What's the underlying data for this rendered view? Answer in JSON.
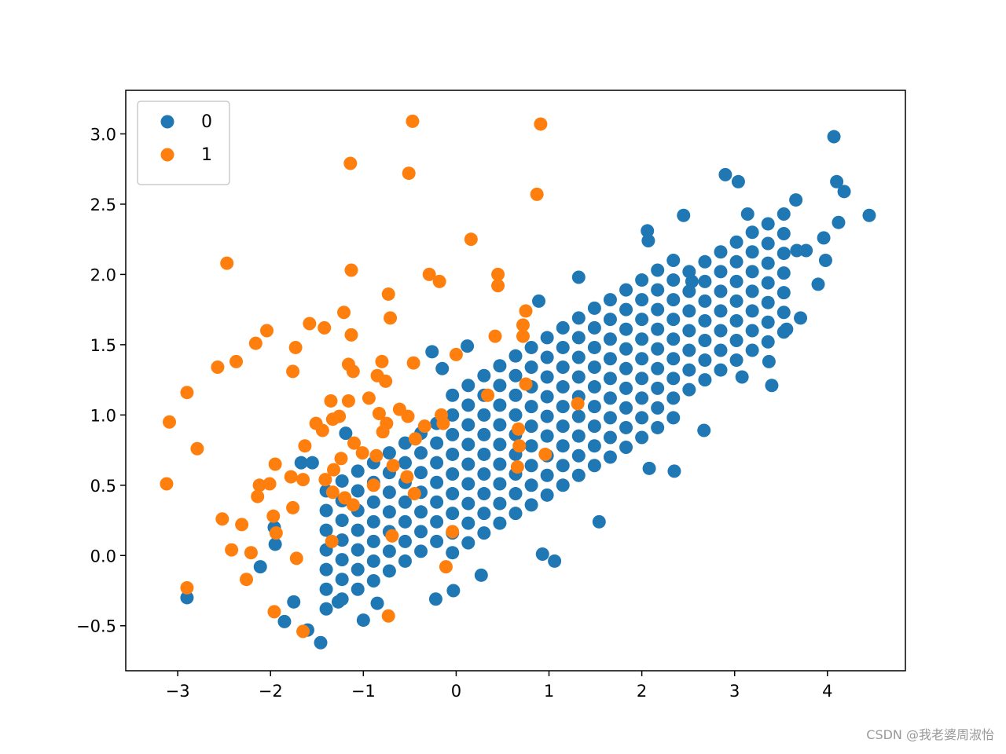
{
  "chart_data": {
    "type": "scatter",
    "xlim": [
      -3.56,
      4.84
    ],
    "ylim": [
      -0.82,
      3.31
    ],
    "xticks": [
      {
        "value": -3,
        "label": "−3"
      },
      {
        "value": -2,
        "label": "−2"
      },
      {
        "value": -1,
        "label": "−1"
      },
      0,
      1,
      2,
      3,
      4
    ],
    "yticks": [
      {
        "value": -0.5,
        "label": "−0.5"
      },
      {
        "value": 0,
        "label": "0.0"
      },
      0.5,
      {
        "value": 1,
        "label": "1.0"
      },
      1.5,
      {
        "value": 2,
        "label": "2.0"
      },
      2.5,
      {
        "value": 3,
        "label": "3.0"
      }
    ],
    "legend": "upper left",
    "series": [
      {
        "name": "0",
        "color": "#1f77b4",
        "x": [
          -1.4,
          -1.23,
          -1.06,
          -0.89,
          -0.72,
          -0.55,
          -0.38,
          -0.21,
          -0.04,
          0.13,
          0.3,
          0.47,
          0.64,
          0.81,
          0.98,
          1.15,
          1.32,
          1.49,
          1.66,
          1.83,
          2,
          2.17,
          2.34,
          2.51,
          2.68,
          2.85,
          3.02,
          3.19,
          3.36,
          3.53,
          -1.4,
          -1.23,
          -1.06,
          -0.89,
          -0.72,
          -0.55,
          -0.38,
          -0.21,
          -0.04,
          0.13,
          0.3,
          0.47,
          0.64,
          0.81,
          0.98,
          1.15,
          1.32,
          1.49,
          1.66,
          1.83,
          2,
          2.17,
          2.34,
          2.51,
          2.68,
          2.85,
          3.02,
          3.19,
          3.36,
          3.53,
          -1.4,
          -1.23,
          -1.06,
          -0.89,
          -0.72,
          -0.55,
          -0.38,
          -0.21,
          -0.04,
          0.13,
          0.3,
          0.47,
          0.64,
          0.81,
          0.98,
          1.15,
          1.32,
          1.49,
          1.66,
          1.83,
          2,
          2.17,
          2.34,
          2.51,
          2.68,
          2.85,
          3.02,
          3.19,
          3.36,
          3.53,
          -1.4,
          -1.23,
          -1.06,
          -0.89,
          -0.72,
          -0.55,
          -0.38,
          -0.21,
          -0.04,
          0.13,
          0.3,
          0.47,
          0.64,
          0.81,
          0.98,
          1.15,
          1.32,
          1.49,
          1.66,
          1.83,
          2,
          2.17,
          2.34,
          2.51,
          2.68,
          2.85,
          3.02,
          3.19,
          3.36,
          3.53,
          -1.4,
          -1.23,
          -1.06,
          -0.89,
          -0.72,
          -0.55,
          -0.38,
          -0.21,
          -0.04,
          0.13,
          0.3,
          0.47,
          0.64,
          0.81,
          0.98,
          1.15,
          1.32,
          1.49,
          1.66,
          1.83,
          2,
          2.17,
          2.34,
          2.51,
          2.68,
          2.85,
          3.02,
          3.19,
          3.36,
          3.53,
          -1.4,
          -1.23,
          -1.06,
          -0.89,
          -0.72,
          -0.55,
          -0.38,
          -0.21,
          -0.04,
          0.13,
          0.3,
          0.47,
          0.64,
          0.81,
          0.98,
          1.15,
          1.32,
          1.49,
          1.66,
          1.83,
          2,
          2.17,
          2.34,
          2.51,
          2.68,
          2.85,
          3.02,
          3.19,
          3.36,
          3.53,
          -1.4,
          -1.23,
          -1.06,
          -0.89,
          -0.72,
          -0.55,
          -0.38,
          -0.21,
          -0.04,
          0.13,
          0.3,
          0.47,
          0.64,
          0.81,
          0.98,
          1.15,
          1.32,
          1.49,
          1.66,
          1.83,
          2,
          2.17,
          2.34,
          2.51,
          2.68,
          2.85,
          3.02,
          3.19,
          3.36,
          3.53,
          -0.04,
          0.13,
          0.3,
          0.47,
          0.64,
          0.81,
          0.98,
          1.15,
          1.32,
          1.49,
          1.66,
          1.83,
          2,
          2.17,
          2.34,
          -0.04,
          0.13,
          0.3,
          0.47,
          0.64,
          0.81,
          0.98,
          1.15,
          1.32,
          1.49,
          1.66,
          1.83,
          2,
          2.17,
          2.34,
          4.07,
          2.9,
          3.04,
          4.1,
          4.18,
          4.45,
          4.12,
          2.45,
          3.66,
          3.96,
          3.9,
          3.71,
          3.56,
          3.37,
          3.4,
          3.08,
          2.67,
          2.35,
          2.08,
          1.54,
          1.06,
          0.93,
          -0.03,
          -0.22,
          -1,
          -1.46,
          -1.6,
          -1.85,
          -2.9,
          -2.11,
          -1.95,
          -1.96,
          -1.67,
          -1.55,
          -1.19,
          -0.26,
          0.12,
          0.89,
          1.32,
          2.06,
          3.14,
          2.07,
          2.54,
          3.77,
          -0.15,
          -1.27,
          -0.85,
          0.27,
          -1.75,
          3.67,
          3.98
        ],
        "values": [
          -0.38,
          -0.31,
          -0.24,
          -0.18,
          -0.11,
          -0.04,
          0.03,
          0.1,
          0.16,
          0.23,
          0.3,
          0.37,
          0.44,
          0.5,
          0.57,
          0.64,
          0.71,
          0.78,
          0.84,
          0.91,
          0.98,
          1.05,
          1.12,
          1.18,
          1.25,
          1.32,
          1.39,
          1.46,
          1.52,
          1.59,
          -0.24,
          -0.17,
          -0.1,
          -0.04,
          0.03,
          0.1,
          0.17,
          0.24,
          0.3,
          0.37,
          0.44,
          0.51,
          0.58,
          0.64,
          0.71,
          0.78,
          0.85,
          0.92,
          0.98,
          1.05,
          1.12,
          1.19,
          1.26,
          1.32,
          1.39,
          1.46,
          1.53,
          1.6,
          1.66,
          1.73,
          -0.1,
          -0.03,
          0.04,
          0.1,
          0.17,
          0.24,
          0.31,
          0.38,
          0.44,
          0.51,
          0.58,
          0.65,
          0.72,
          0.78,
          0.85,
          0.92,
          0.99,
          1.06,
          1.12,
          1.19,
          1.26,
          1.33,
          1.4,
          1.46,
          1.53,
          1.6,
          1.67,
          1.74,
          1.8,
          1.87,
          0.04,
          0.11,
          0.18,
          0.24,
          0.31,
          0.38,
          0.45,
          0.52,
          0.58,
          0.65,
          0.72,
          0.79,
          0.86,
          0.92,
          0.99,
          1.06,
          1.13,
          1.2,
          1.26,
          1.33,
          1.4,
          1.47,
          1.54,
          1.6,
          1.67,
          1.74,
          1.81,
          1.88,
          1.94,
          2.01,
          0.18,
          0.25,
          0.32,
          0.38,
          0.45,
          0.52,
          0.59,
          0.66,
          0.72,
          0.79,
          0.86,
          0.93,
          1,
          1.06,
          1.13,
          1.2,
          1.27,
          1.34,
          1.4,
          1.47,
          1.54,
          1.61,
          1.68,
          1.74,
          1.81,
          1.88,
          1.95,
          2.02,
          2.08,
          2.15,
          0.32,
          0.39,
          0.46,
          0.52,
          0.59,
          0.66,
          0.73,
          0.8,
          0.86,
          0.93,
          1,
          1.07,
          1.14,
          1.2,
          1.27,
          1.34,
          1.41,
          1.48,
          1.54,
          1.61,
          1.68,
          1.75,
          1.82,
          1.88,
          1.95,
          2.02,
          2.09,
          2.16,
          2.22,
          2.29,
          0.46,
          0.53,
          0.6,
          0.66,
          0.73,
          0.8,
          0.87,
          0.94,
          1,
          1.07,
          1.14,
          1.21,
          1.28,
          1.34,
          1.41,
          1.48,
          1.55,
          1.62,
          1.68,
          1.75,
          1.82,
          1.89,
          1.96,
          2.02,
          2.09,
          2.16,
          2.23,
          2.3,
          2.36,
          2.43,
          0.02,
          0.09,
          0.16,
          0.23,
          0.3,
          0.36,
          0.43,
          0.5,
          0.57,
          0.64,
          0.7,
          0.77,
          0.84,
          0.91,
          0.98,
          1.14,
          1.21,
          1.28,
          1.35,
          1.42,
          1.48,
          1.55,
          1.62,
          1.69,
          1.76,
          1.82,
          1.89,
          1.96,
          2.03,
          2.1,
          2.98,
          2.71,
          2.66,
          2.66,
          2.59,
          2.42,
          2.37,
          2.42,
          2.53,
          2.26,
          1.93,
          1.69,
          1.61,
          1.38,
          1.21,
          1.27,
          0.89,
          0.6,
          0.62,
          0.24,
          -0.04,
          0.01,
          -0.25,
          -0.31,
          -0.46,
          -0.62,
          -0.53,
          -0.47,
          -0.3,
          -0.08,
          0.08,
          0.2,
          0.66,
          0.66,
          0.87,
          1.45,
          1.49,
          1.81,
          1.98,
          2.31,
          2.43,
          2.24,
          1.95,
          2.17,
          1.33,
          -0.33,
          -0.34,
          -0.14,
          -0.33,
          2.17,
          2.1
        ]
      },
      {
        "name": "1",
        "color": "#ff7f0e",
        "x": [
          -0.47,
          0.91,
          -1.14,
          -0.51,
          0.87,
          0.16,
          -2.47,
          -1.13,
          -0.29,
          -0.18,
          0.45,
          0.45,
          -0.73,
          -0.71,
          0.75,
          -1.21,
          -1.58,
          -1.42,
          -2.04,
          -2.16,
          -1.73,
          -1.13,
          0.72,
          0.72,
          0.42,
          -2.37,
          -2.57,
          -0.46,
          -0.8,
          -1.16,
          -1.11,
          -1.76,
          -0.85,
          -0.76,
          0,
          0.75,
          0.34,
          -2.9,
          -0.94,
          -1.35,
          -1.16,
          1.31,
          -0.61,
          -0.83,
          -1.26,
          -0.16,
          -1.33,
          -0.52,
          -0.14,
          -0.75,
          -3.09,
          -1.51,
          -1.44,
          -0.79,
          -0.34,
          0.67,
          -2.79,
          -0.44,
          -1.63,
          -1.1,
          0.68,
          -1.01,
          0.96,
          -0.86,
          -1.24,
          -1.95,
          -0.68,
          0.66,
          -1.32,
          -1.78,
          -1.41,
          -1.65,
          -0.53,
          -2.12,
          -2.01,
          -3.12,
          -0.89,
          -2.14,
          -0.45,
          -1.33,
          -1.2,
          -1.11,
          -1.76,
          -2.52,
          -1.97,
          -2.31,
          -1.94,
          -0.04,
          -0.69,
          -1.34,
          -2.42,
          -2.21,
          -1.72,
          -0.11,
          -2.26,
          -2.9,
          -1.96,
          -0.73,
          -1.65
        ],
        "values": [
          3.09,
          3.07,
          2.79,
          2.72,
          2.57,
          2.25,
          2.08,
          2.03,
          2,
          1.95,
          2,
          1.92,
          1.86,
          1.69,
          1.74,
          1.73,
          1.65,
          1.62,
          1.6,
          1.51,
          1.48,
          1.57,
          1.64,
          1.56,
          1.56,
          1.38,
          1.34,
          1.37,
          1.38,
          1.36,
          1.31,
          1.31,
          1.28,
          1.24,
          1.43,
          1.22,
          1.14,
          1.16,
          1.12,
          1.1,
          1.1,
          1.08,
          1.04,
          1.01,
          0.99,
          1,
          0.97,
          0.99,
          0.94,
          0.94,
          0.95,
          0.94,
          0.89,
          0.88,
          0.92,
          0.9,
          0.76,
          0.83,
          0.78,
          0.8,
          0.78,
          0.73,
          0.72,
          0.71,
          0.69,
          0.65,
          0.64,
          0.63,
          0.61,
          0.56,
          0.54,
          0.54,
          0.56,
          0.5,
          0.51,
          0.51,
          0.5,
          0.42,
          0.44,
          0.45,
          0.41,
          0.36,
          0.34,
          0.26,
          0.28,
          0.22,
          0.16,
          0.17,
          0.14,
          0.1,
          0.04,
          0.02,
          -0.02,
          -0.08,
          -0.17,
          -0.23,
          -0.4,
          -0.43,
          -0.54
        ]
      }
    ]
  },
  "watermark": "CSDN @我老婆周淑怡"
}
